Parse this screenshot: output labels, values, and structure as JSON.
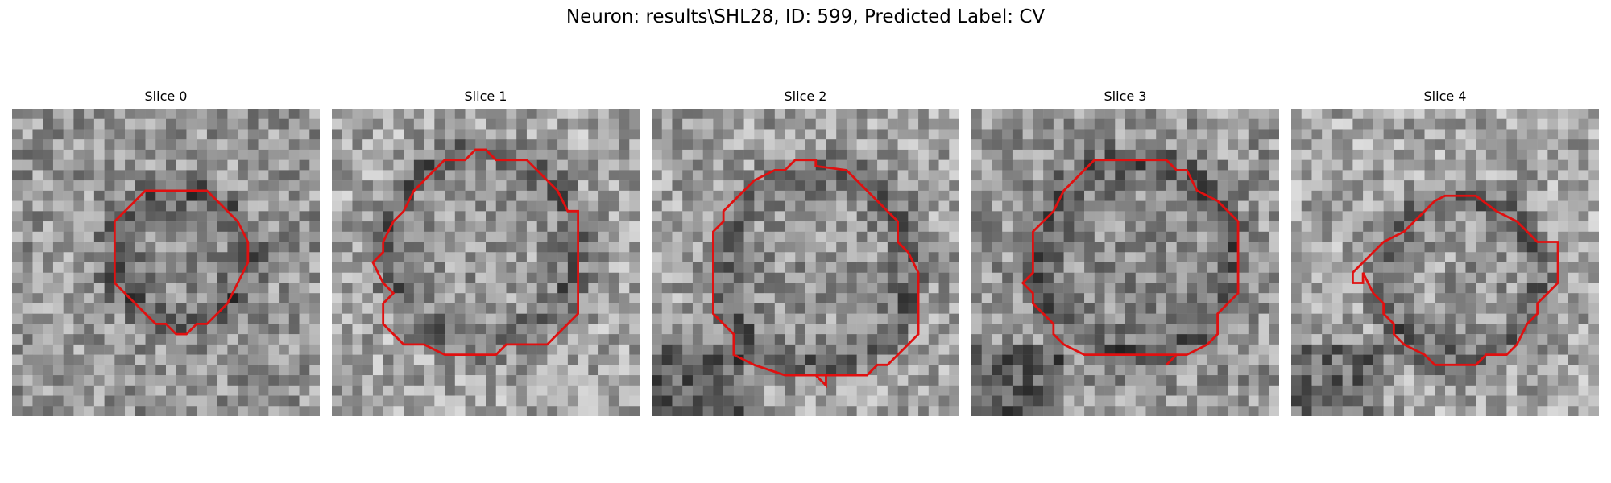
{
  "figure": {
    "title": "Neuron: results\\SHL28, ID: 599, Predicted Label: CV"
  },
  "panels": [
    {
      "title": "Slice 0"
    },
    {
      "title": "Slice 1"
    },
    {
      "title": "Slice 2"
    },
    {
      "title": "Slice 3"
    },
    {
      "title": "Slice 4"
    }
  ],
  "colors": {
    "contour": "#e01010",
    "background": "#ffffff"
  }
}
